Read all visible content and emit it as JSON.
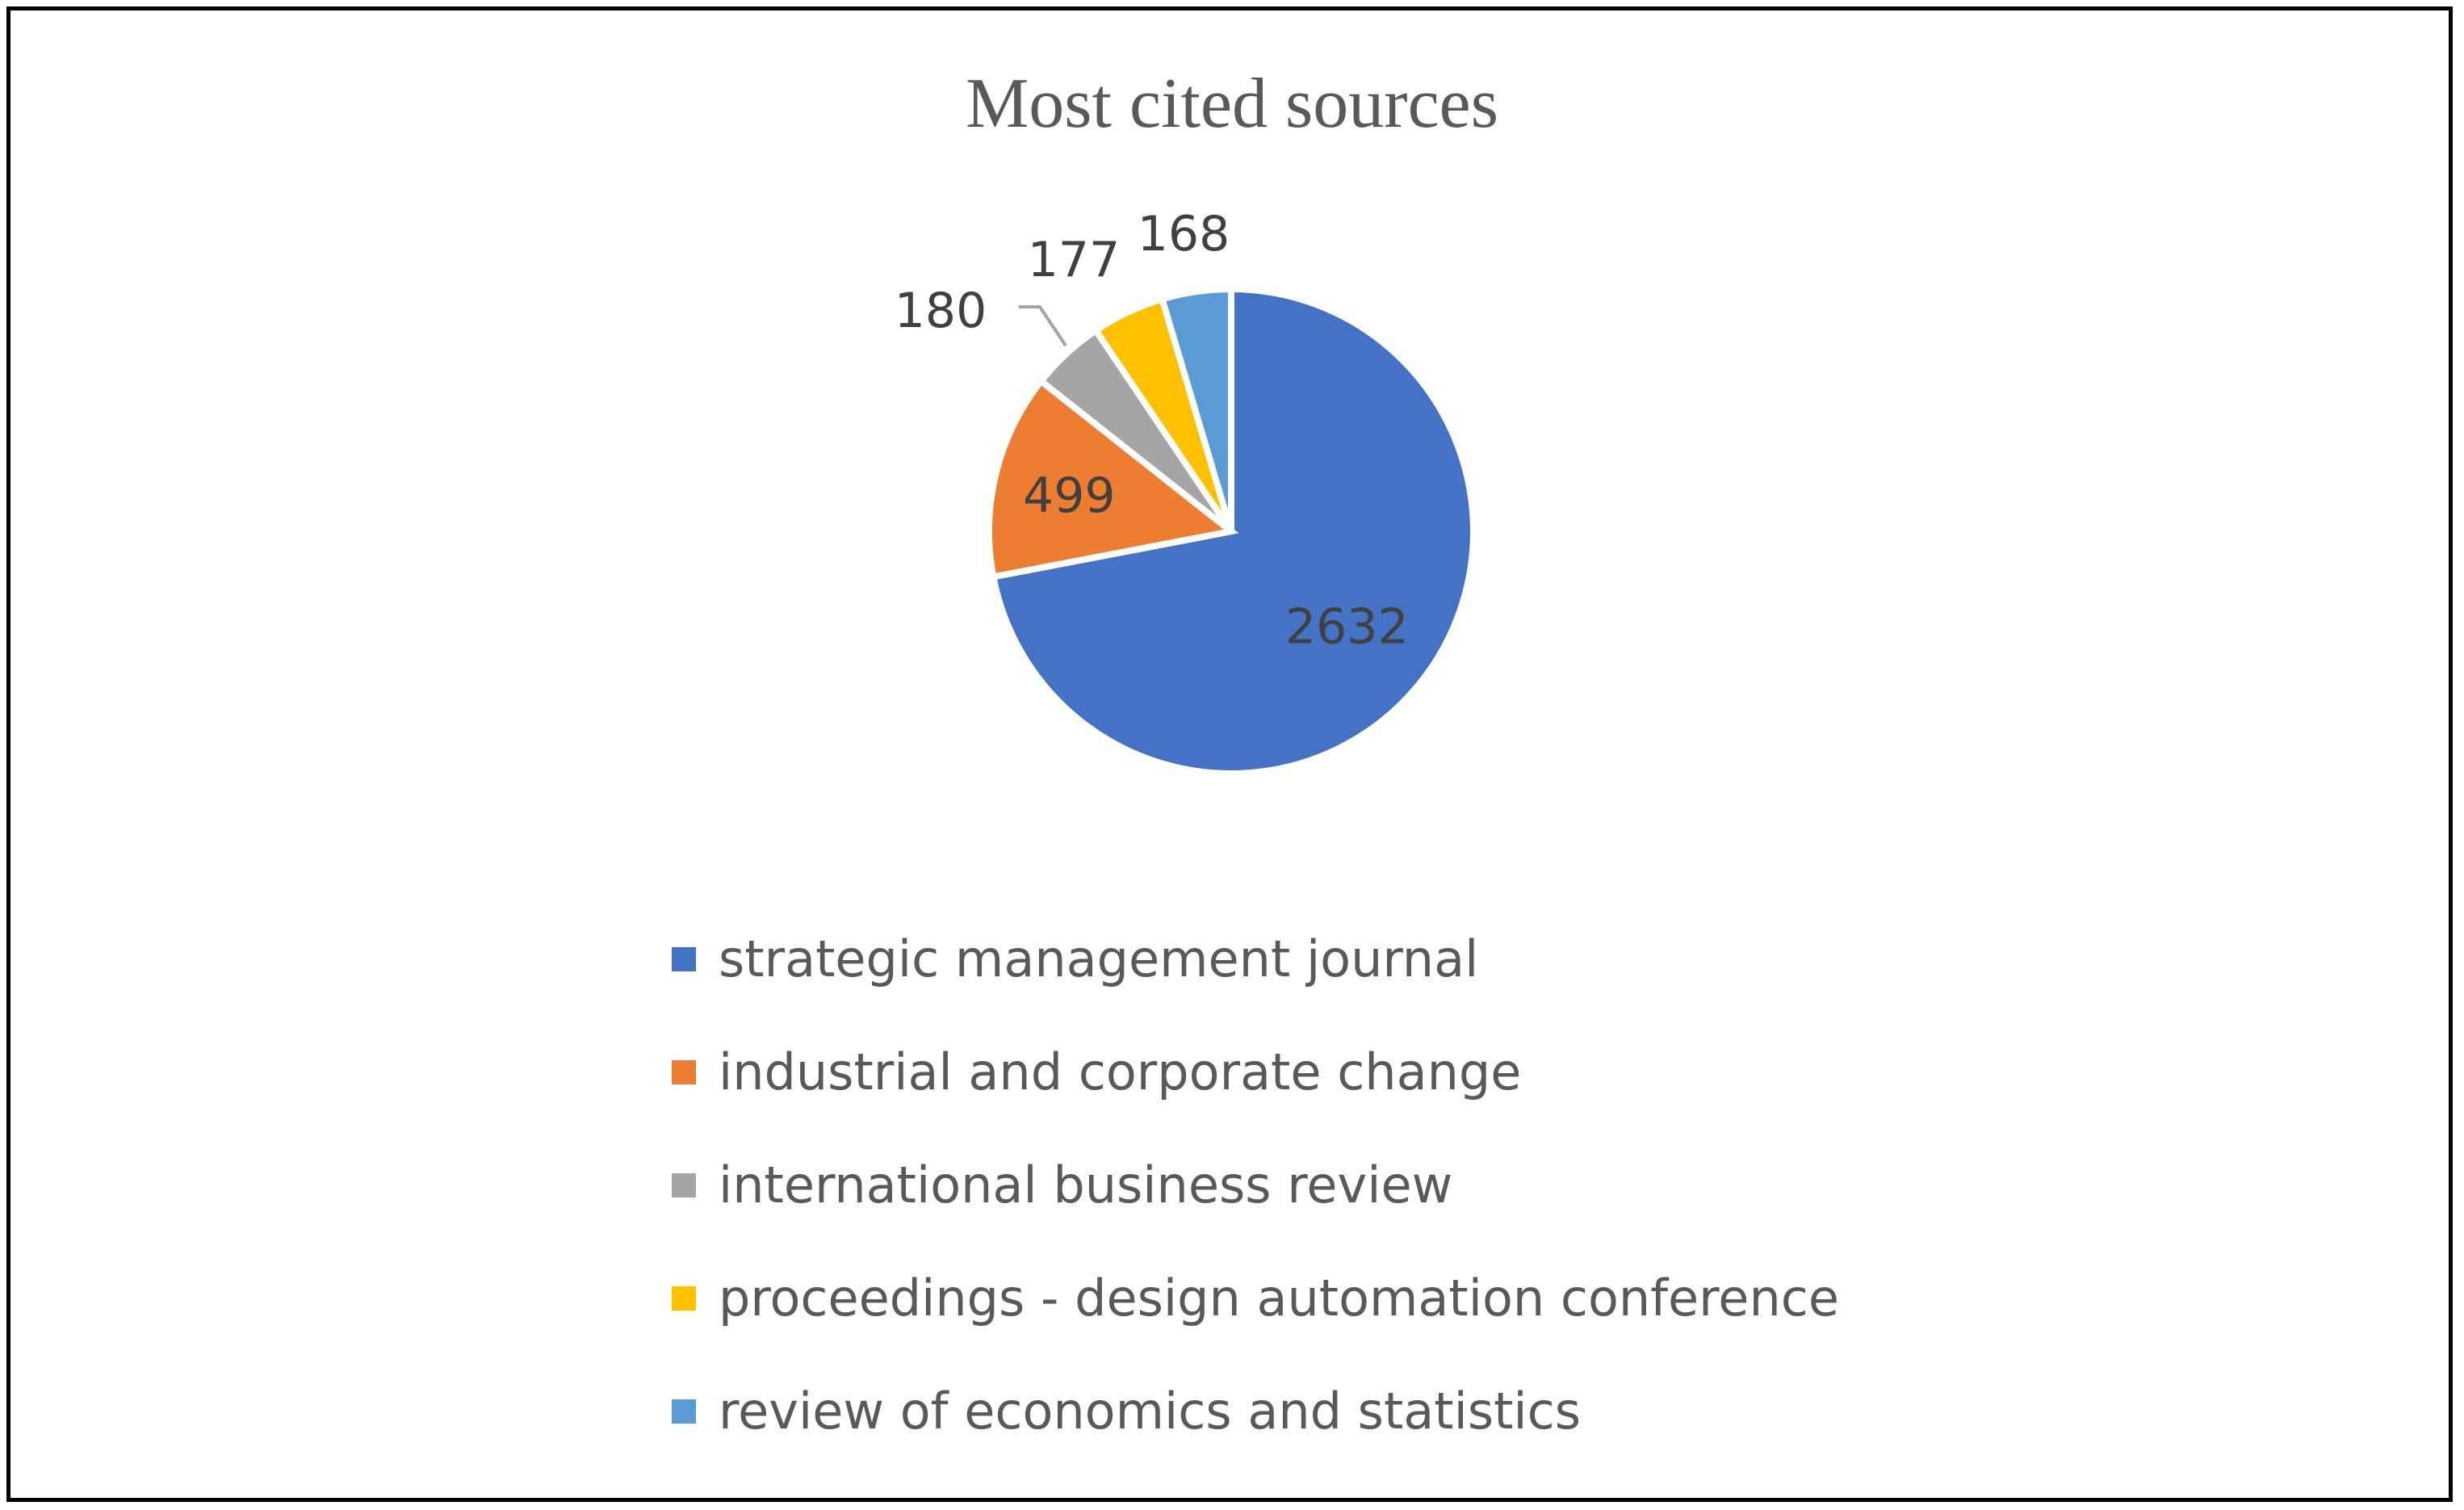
{
  "chart_data": {
    "type": "pie",
    "title": "Most cited sources",
    "categories": [
      "strategic management journal",
      "industrial and corporate change",
      "international business review",
      "proceedings - design automation conference",
      "review of economics and statistics"
    ],
    "values": [
      2632,
      499,
      180,
      177,
      168
    ],
    "colors": [
      "#4472C4",
      "#ED7D31",
      "#A5A5A5",
      "#FFC000",
      "#5B9BD5"
    ],
    "legend": "bottom"
  }
}
